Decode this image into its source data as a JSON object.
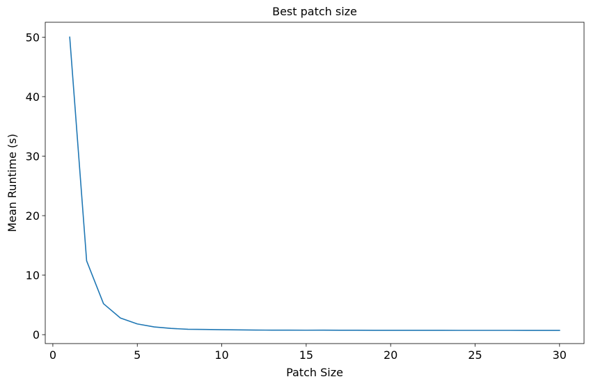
{
  "chart_data": {
    "type": "line",
    "title": "Best patch size",
    "xlabel": "Patch Size",
    "ylabel": "Mean Runtime (s)",
    "xlim": [
      -0.45,
      31.45
    ],
    "ylim": [
      -1.5,
      52.5
    ],
    "xticks": [
      0,
      5,
      10,
      15,
      20,
      25,
      30
    ],
    "yticks": [
      0,
      10,
      20,
      30,
      40,
      50
    ],
    "grid": false,
    "series": [
      {
        "color": "#1f77b4",
        "x": [
          1,
          2,
          3,
          4,
          5,
          6,
          7,
          8,
          9,
          10,
          11,
          12,
          13,
          14,
          15,
          16,
          17,
          18,
          19,
          20,
          21,
          22,
          23,
          24,
          25,
          26,
          27,
          28,
          29,
          30
        ],
        "y": [
          50.0,
          12.4,
          5.2,
          2.8,
          1.8,
          1.3,
          1.05,
          0.9,
          0.87,
          0.83,
          0.8,
          0.77,
          0.76,
          0.76,
          0.75,
          0.76,
          0.74,
          0.74,
          0.73,
          0.73,
          0.73,
          0.73,
          0.73,
          0.72,
          0.72,
          0.72,
          0.72,
          0.71,
          0.71,
          0.71
        ]
      }
    ]
  }
}
